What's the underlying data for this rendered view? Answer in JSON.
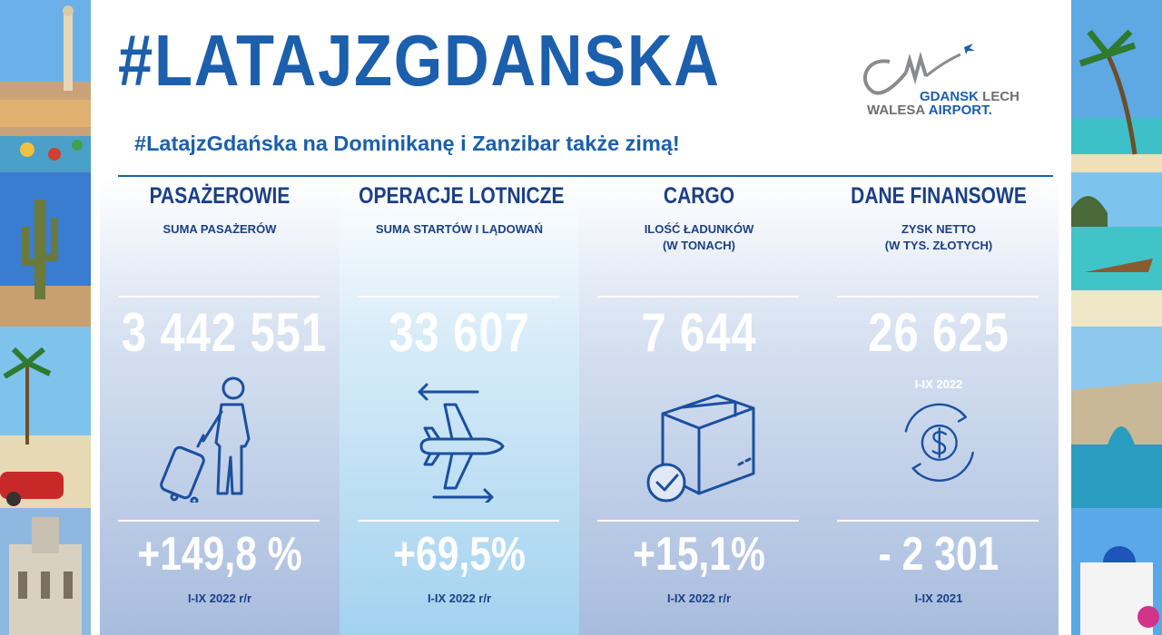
{
  "header": {
    "hashtag": "#LATAJZGDANSKA",
    "subtitle": "#LatajzGdańska na Dominikanę i Zanzibar także zimą!"
  },
  "logo": {
    "line1_bold": "GDANSK",
    "line1_rest": " LECH",
    "line2_rest": "WALESA ",
    "line2_bold": "AIRPORT."
  },
  "columns": [
    {
      "title": "PASAŻEROWIE",
      "subtitle": "SUMA PASAŻERÓW",
      "value": "3 442 551",
      "note": "",
      "change": "+149,8 %",
      "period": "I-IX 2022 r/r",
      "icon": "traveler-with-suitcase-icon"
    },
    {
      "title": "OPERACJE LOTNICZE",
      "subtitle": "SUMA STARTÓW I LĄDOWAŃ",
      "value": "33 607",
      "note": "",
      "change": "+69,5%",
      "period": "I-IX 2022 r/r",
      "icon": "airplane-arrows-icon"
    },
    {
      "title": "CARGO",
      "subtitle": "ILOŚĆ ŁADUNKÓW\n(W TONACH)",
      "value": "7 644",
      "note": "",
      "change": "+15,1%",
      "period": "I-IX 2022 r/r",
      "icon": "cargo-box-check-icon"
    },
    {
      "title": "DANE FINANSOWE",
      "subtitle": "ZYSK NETTO\n(W TYS. ZŁOTYCH)",
      "value": "26 625",
      "note": "I-IX 2022",
      "change": "- 2 301",
      "period": "I-IX 2021",
      "icon": "dollar-cycle-icon"
    }
  ],
  "colors": {
    "brand_blue": "#1b5fad",
    "dark_blue": "#1b3f86",
    "logo_gray": "#6d6e71"
  }
}
